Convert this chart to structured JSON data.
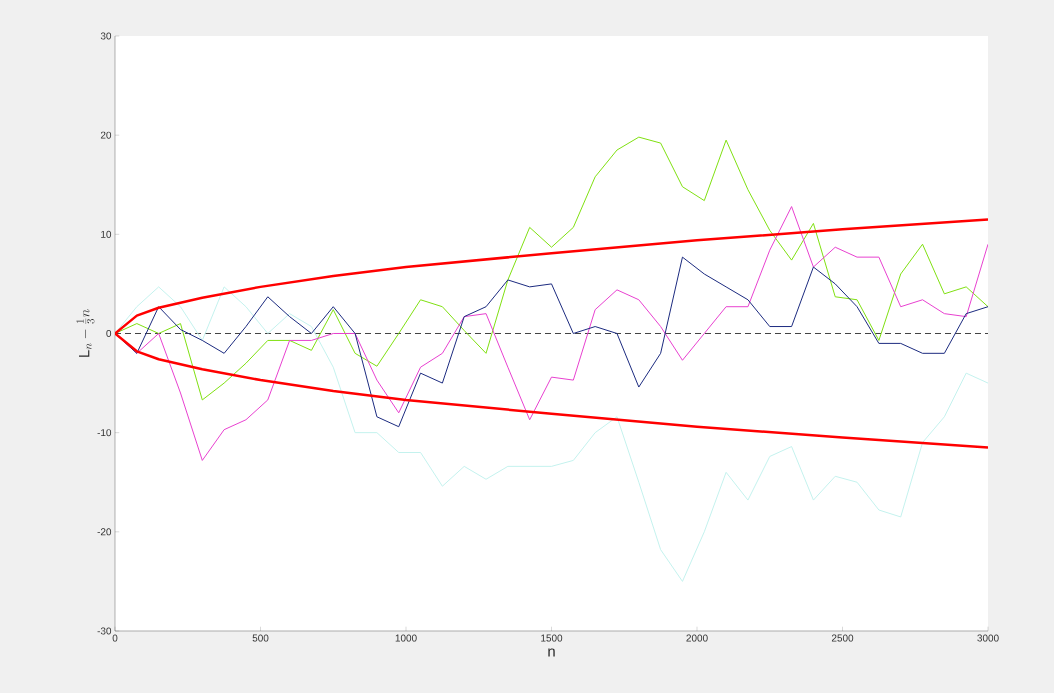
{
  "chart_data": {
    "type": "line",
    "xlabel": "n",
    "ylabel": "\\mathrm{L}_n-\\frac{1}{3}n",
    "xlim": [
      0,
      3000
    ],
    "ylim": [
      -30,
      30
    ],
    "xticks": [
      0,
      500,
      1000,
      1500,
      2000,
      2500,
      3000
    ],
    "yticks": [
      -30,
      -20,
      -10,
      0,
      10,
      20,
      30
    ],
    "x": [
      0,
      75,
      150,
      225,
      300,
      375,
      450,
      525,
      600,
      675,
      750,
      825,
      900,
      975,
      1050,
      1125,
      1200,
      1275,
      1350,
      1425,
      1500,
      1575,
      1650,
      1725,
      1800,
      1875,
      1950,
      2025,
      2100,
      2175,
      2250,
      2325,
      2400,
      2475,
      2550,
      2625,
      2700,
      2775,
      2850,
      2925,
      3000
    ],
    "series": [
      {
        "color": "#c4f2ee",
        "values": [
          0,
          2.7,
          4.7,
          2.7,
          -0.7,
          4.7,
          2.7,
          0,
          2,
          0.7,
          -3.4,
          -10,
          -10,
          -12,
          -12,
          -15.4,
          -13.4,
          -14.7,
          -13.4,
          -13.4,
          -13.4,
          -12.8,
          -10,
          -8.4,
          -15,
          -21.8,
          -25,
          -20,
          -14,
          -16.8,
          -12.4,
          -11.4,
          -16.8,
          -14.4,
          -15,
          -17.8,
          -18.5,
          -11,
          -8.4,
          -4,
          -5
        ]
      },
      {
        "color": "#80e010",
        "values": [
          0,
          1,
          0,
          1,
          -6.7,
          -5,
          -3,
          -0.7,
          -0.7,
          -1.7,
          2.4,
          -2,
          -3.3,
          0,
          3.4,
          2.7,
          0.3,
          -2,
          5.4,
          10.7,
          8.7,
          10.7,
          15.8,
          18.5,
          19.8,
          19.2,
          14.8,
          13.4,
          19.5,
          14.5,
          10.4,
          7.4,
          11.1,
          3.7,
          3.4,
          -0.7,
          6,
          9,
          4,
          4.7,
          2.7
        ]
      },
      {
        "color": "#e840d0",
        "values": [
          0,
          -2,
          0,
          -6,
          -12.8,
          -9.7,
          -8.7,
          -6.7,
          -0.7,
          -0.7,
          0,
          0,
          -4.7,
          -8,
          -3.4,
          -2,
          1.7,
          2,
          -3.4,
          -8.7,
          -4.4,
          -4.7,
          2.4,
          4.4,
          3.4,
          0.7,
          -2.7,
          0,
          2.7,
          2.7,
          8.4,
          12.8,
          6.7,
          8.7,
          7.7,
          7.7,
          2.7,
          3.4,
          2,
          1.7,
          9
        ]
      },
      {
        "color": "#1b2a80",
        "values": [
          0,
          -2,
          2.7,
          0.4,
          -0.7,
          -2,
          0.7,
          3.7,
          1.7,
          0,
          2.7,
          0,
          -8.4,
          -9.4,
          -4,
          -5,
          1.7,
          2.7,
          5.4,
          4.7,
          5,
          0,
          0.7,
          0,
          -5.4,
          -2,
          7.7,
          6,
          4.7,
          3.4,
          0.7,
          0.7,
          6.7,
          5,
          2.7,
          -1,
          -1,
          -2,
          -2,
          2,
          2.7
        ]
      },
      {
        "color": "#ff0000",
        "x": [
          0,
          75,
          150,
          300,
          500,
          750,
          1000,
          1500,
          2000,
          2500,
          3000
        ],
        "values": [
          0,
          1.8,
          2.6,
          3.6,
          4.7,
          5.8,
          6.7,
          8.1,
          9.4,
          10.5,
          11.5
        ]
      },
      {
        "color": "#ff0000",
        "x": [
          0,
          75,
          150,
          300,
          500,
          750,
          1000,
          1500,
          2000,
          2500,
          3000
        ],
        "values": [
          0,
          -1.8,
          -2.6,
          -3.6,
          -4.7,
          -5.8,
          -6.7,
          -8.1,
          -9.4,
          -10.5,
          -11.5
        ]
      }
    ],
    "ref_lines": [
      {
        "axis": "y",
        "value": 0,
        "color": "#404040",
        "line_style": "dashed"
      }
    ]
  }
}
